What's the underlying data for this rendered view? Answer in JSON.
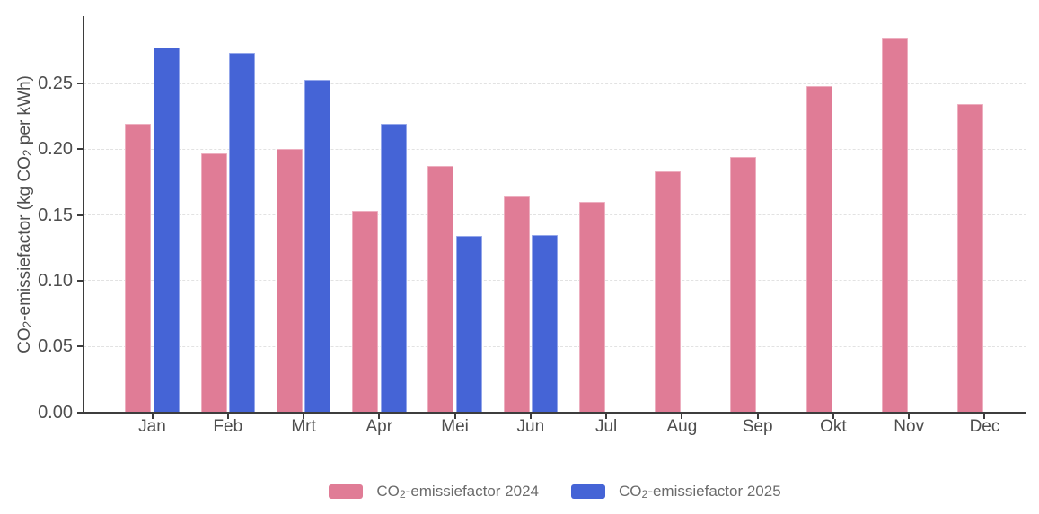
{
  "chart_data": {
    "type": "bar",
    "title": "",
    "categories": [
      "Jan",
      "Feb",
      "Mrt",
      "Apr",
      "Mei",
      "Jun",
      "Jul",
      "Aug",
      "Sep",
      "Okt",
      "Nov",
      "Dec"
    ],
    "series": [
      {
        "key": "2024",
        "name": "CO2-emissiefactor 2024",
        "color": "#e07c96",
        "border_color": "#edaebf",
        "values": [
          0.219,
          0.197,
          0.2,
          0.153,
          0.187,
          0.164,
          0.16,
          0.183,
          0.194,
          0.248,
          0.285,
          0.234
        ]
      },
      {
        "key": "2025",
        "name": "CO2-emissiefactor 2025",
        "color": "#4564d6",
        "border_color": "#93a6ea",
        "values": [
          0.277,
          0.273,
          0.253,
          0.219,
          0.134,
          0.135,
          null,
          null,
          null,
          null,
          null,
          null
        ]
      }
    ],
    "xlabel": "",
    "ylabel": "CO2-emissiefactor (kg CO2 per kWh)",
    "yticks": [
      0.0,
      0.05,
      0.1,
      0.15,
      0.2,
      0.25
    ],
    "ytick_labels": [
      "0.00",
      "0.05",
      "0.10",
      "0.15",
      "0.20",
      "0.25"
    ],
    "ylim": [
      0,
      0.3
    ],
    "grid": "horizontal-dashed",
    "legend_position": "bottom"
  },
  "y_axis_title": {
    "p1": "CO",
    "s1": "2",
    "p2": "-emissiefactor (kg CO",
    "s2": "2",
    "p3": " per kWh)"
  },
  "legend": {
    "items": [
      {
        "co": "CO",
        "sub": "2",
        "rest": "-emissiefactor 2024"
      },
      {
        "co": "CO",
        "sub": "2",
        "rest": "-emissiefactor 2025"
      }
    ]
  },
  "colors": {
    "background": "#ffffff",
    "axis": "#3d3d3d",
    "grid": "#e2e2e2",
    "tick_text": "#4e4e4e",
    "legend_text": "#6b6b6b",
    "series_2024": "#e07c96",
    "series_2025": "#4564d6"
  }
}
